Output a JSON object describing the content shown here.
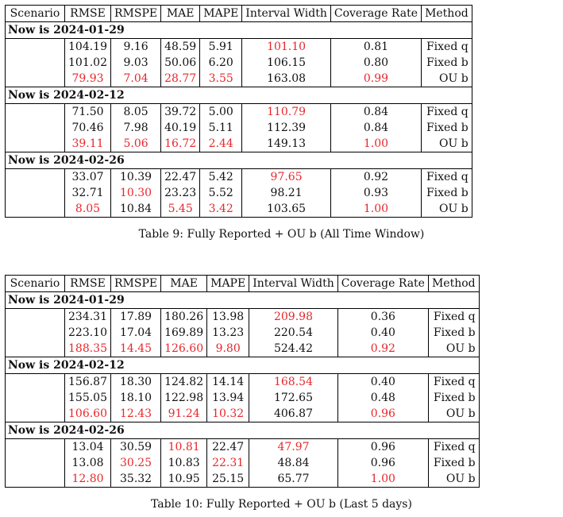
{
  "headers": [
    "Scenario",
    "RMSE",
    "RMSPE",
    "MAE",
    "MAPE",
    "Interval Width",
    "Coverage Rate",
    "Method"
  ],
  "tables": [
    {
      "caption": "Table 9: Fully Reported + OU b (All Time Window)",
      "groups": [
        {
          "title": "Now is 2024-01-29",
          "rows": [
            {
              "cells": [
                "104.19",
                "9.16",
                "48.59",
                "5.91",
                "101.10",
                "0.81",
                "Fixed q"
              ],
              "red": [
                4
              ]
            },
            {
              "cells": [
                "101.02",
                "9.03",
                "50.06",
                "6.20",
                "106.15",
                "0.80",
                "Fixed b"
              ],
              "red": []
            },
            {
              "cells": [
                "79.93",
                "7.04",
                "28.77",
                "3.55",
                "163.08",
                "0.99",
                "OU b"
              ],
              "red": [
                0,
                1,
                2,
                3,
                5
              ]
            }
          ]
        },
        {
          "title": "Now is 2024-02-12",
          "rows": [
            {
              "cells": [
                "71.50",
                "8.05",
                "39.72",
                "5.00",
                "110.79",
                "0.84",
                "Fixed q"
              ],
              "red": [
                4
              ]
            },
            {
              "cells": [
                "70.46",
                "7.98",
                "40.19",
                "5.11",
                "112.39",
                "0.84",
                "Fixed b"
              ],
              "red": []
            },
            {
              "cells": [
                "39.11",
                "5.06",
                "16.72",
                "2.44",
                "149.13",
                "1.00",
                "OU b"
              ],
              "red": [
                0,
                1,
                2,
                3,
                5
              ]
            }
          ]
        },
        {
          "title": "Now is 2024-02-26",
          "rows": [
            {
              "cells": [
                "33.07",
                "10.39",
                "22.47",
                "5.42",
                "97.65",
                "0.92",
                "Fixed q"
              ],
              "red": [
                4
              ]
            },
            {
              "cells": [
                "32.71",
                "10.30",
                "23.23",
                "5.52",
                "98.21",
                "0.93",
                "Fixed b"
              ],
              "red": [
                1
              ]
            },
            {
              "cells": [
                "8.05",
                "10.84",
                "5.45",
                "3.42",
                "103.65",
                "1.00",
                "OU b"
              ],
              "red": [
                0,
                2,
                3,
                5
              ]
            }
          ]
        }
      ]
    },
    {
      "caption": "Table 10: Fully Reported + OU b (Last 5 days)",
      "groups": [
        {
          "title": "Now is 2024-01-29",
          "rows": [
            {
              "cells": [
                "234.31",
                "17.89",
                "180.26",
                "13.98",
                "209.98",
                "0.36",
                "Fixed q"
              ],
              "red": [
                4
              ]
            },
            {
              "cells": [
                "223.10",
                "17.04",
                "169.89",
                "13.23",
                "220.54",
                "0.40",
                "Fixed b"
              ],
              "red": []
            },
            {
              "cells": [
                "188.35",
                "14.45",
                "126.60",
                "9.80",
                "524.42",
                "0.92",
                "OU b"
              ],
              "red": [
                0,
                1,
                2,
                3,
                5
              ]
            }
          ]
        },
        {
          "title": "Now is 2024-02-12",
          "rows": [
            {
              "cells": [
                "156.87",
                "18.30",
                "124.82",
                "14.14",
                "168.54",
                "0.40",
                "Fixed q"
              ],
              "red": [
                4
              ]
            },
            {
              "cells": [
                "155.05",
                "18.10",
                "122.98",
                "13.94",
                "172.65",
                "0.48",
                "Fixed b"
              ],
              "red": []
            },
            {
              "cells": [
                "106.60",
                "12.43",
                "91.24",
                "10.32",
                "406.87",
                "0.96",
                "OU b"
              ],
              "red": [
                0,
                1,
                2,
                3,
                5
              ]
            }
          ]
        },
        {
          "title": "Now is 2024-02-26",
          "rows": [
            {
              "cells": [
                "13.04",
                "30.59",
                "10.81",
                "22.47",
                "47.97",
                "0.96",
                "Fixed q"
              ],
              "red": [
                2,
                4
              ]
            },
            {
              "cells": [
                "13.08",
                "30.25",
                "10.83",
                "22.31",
                "48.84",
                "0.96",
                "Fixed b"
              ],
              "red": [
                1,
                3
              ]
            },
            {
              "cells": [
                "12.80",
                "35.32",
                "10.95",
                "25.15",
                "65.77",
                "1.00",
                "OU b"
              ],
              "red": [
                0,
                5
              ]
            }
          ]
        }
      ]
    }
  ]
}
